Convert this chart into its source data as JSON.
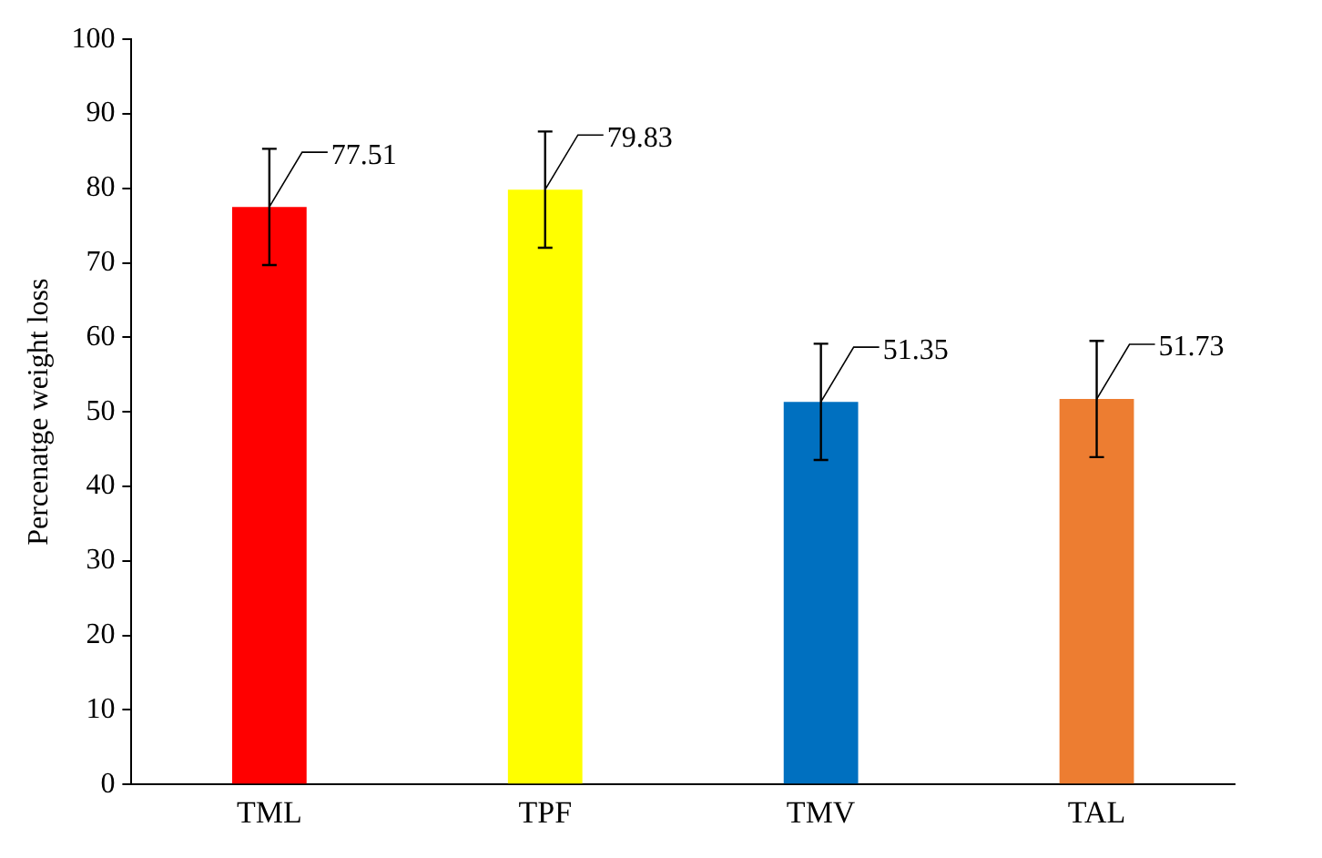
{
  "chart_data": {
    "type": "bar",
    "ylabel": "Percenatge weight loss",
    "categories": [
      "TML",
      "TPF",
      "TMV",
      "TAL"
    ],
    "values": [
      77.51,
      79.83,
      51.35,
      51.73
    ],
    "colors": [
      "#ff0000",
      "#ffff00",
      "#0070c0",
      "#ed7d31"
    ],
    "errors": [
      7.8,
      7.8,
      7.8,
      7.8
    ],
    "ylim": [
      0,
      100
    ],
    "yticks": [
      0,
      10,
      20,
      30,
      40,
      50,
      60,
      70,
      80,
      90,
      100
    ],
    "grid": false,
    "data_labels": true
  }
}
